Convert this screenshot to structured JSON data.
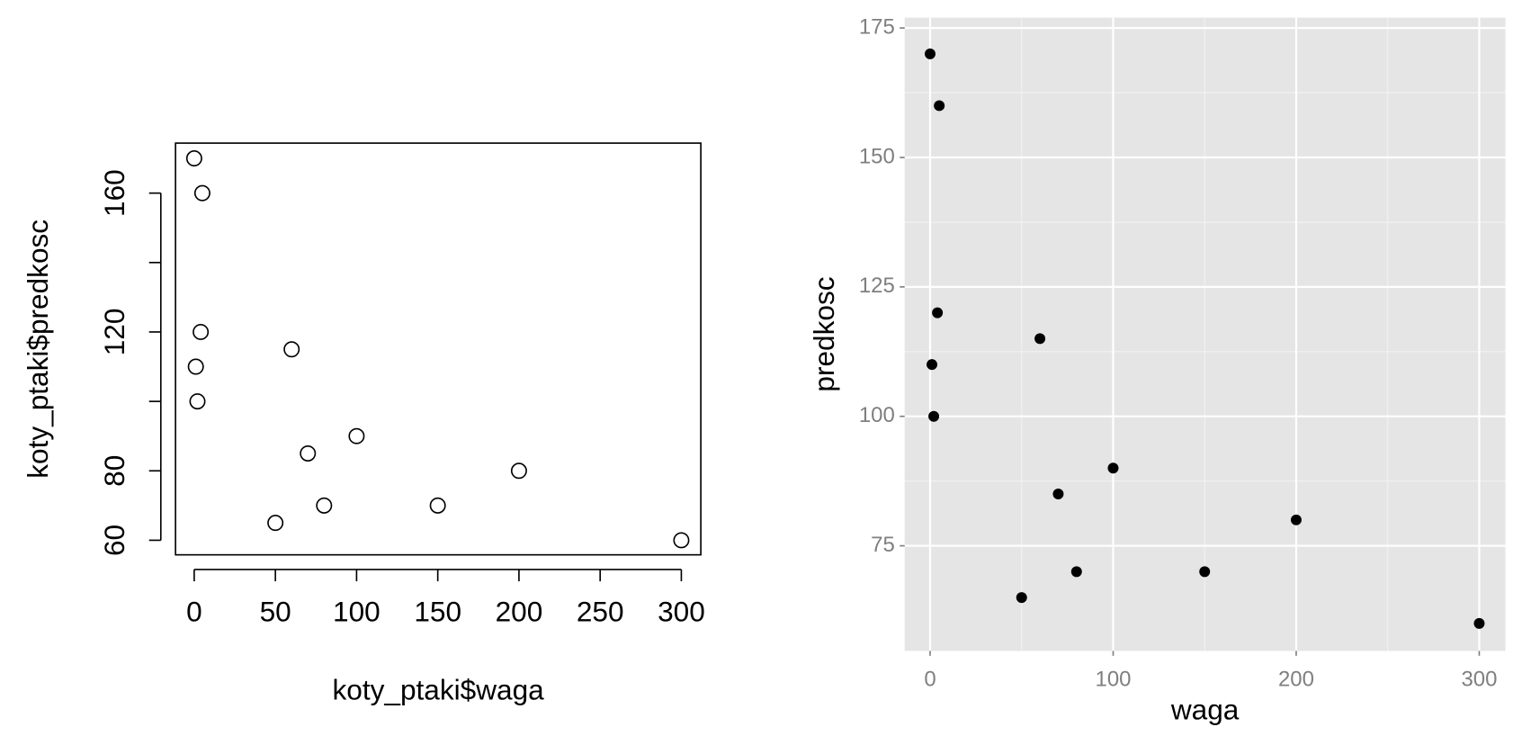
{
  "chart_data": [
    {
      "type": "scatter",
      "style": "base",
      "grid": false,
      "marker": "open",
      "color": "#000000",
      "x": [
        0,
        5,
        4,
        1,
        2,
        60,
        100,
        70,
        200,
        80,
        150,
        50,
        300
      ],
      "y": [
        170,
        160,
        120,
        110,
        100,
        115,
        90,
        85,
        80,
        70,
        70,
        65,
        60
      ],
      "xlim": [
        -11.5,
        312
      ],
      "ylim": [
        55.8,
        174.4
      ],
      "xticks": [
        0,
        50,
        100,
        150,
        200,
        250,
        300
      ],
      "yticks": [
        60,
        80,
        {
          "value": 100,
          "label": null
        },
        120,
        {
          "value": 140,
          "label": null
        },
        160
      ],
      "x_label": "koty_ptaki$waga",
      "y_label": "koty_ptaki$predkosc"
    },
    {
      "type": "scatter",
      "style": "ggplot",
      "grid": true,
      "marker": "filled",
      "color": "#000000",
      "x": [
        0,
        5,
        4,
        1,
        2,
        60,
        100,
        70,
        200,
        80,
        150,
        50,
        300
      ],
      "y": [
        170,
        160,
        120,
        110,
        100,
        115,
        90,
        85,
        80,
        70,
        70,
        65,
        60
      ],
      "xlim": [
        -13.9,
        314.3
      ],
      "ylim": [
        54.7,
        177
      ],
      "xticks": [
        0,
        100,
        200,
        300
      ],
      "yticks": [
        75,
        100,
        125,
        150,
        175
      ],
      "x_label": "waga",
      "y_label": "predkosc"
    }
  ]
}
